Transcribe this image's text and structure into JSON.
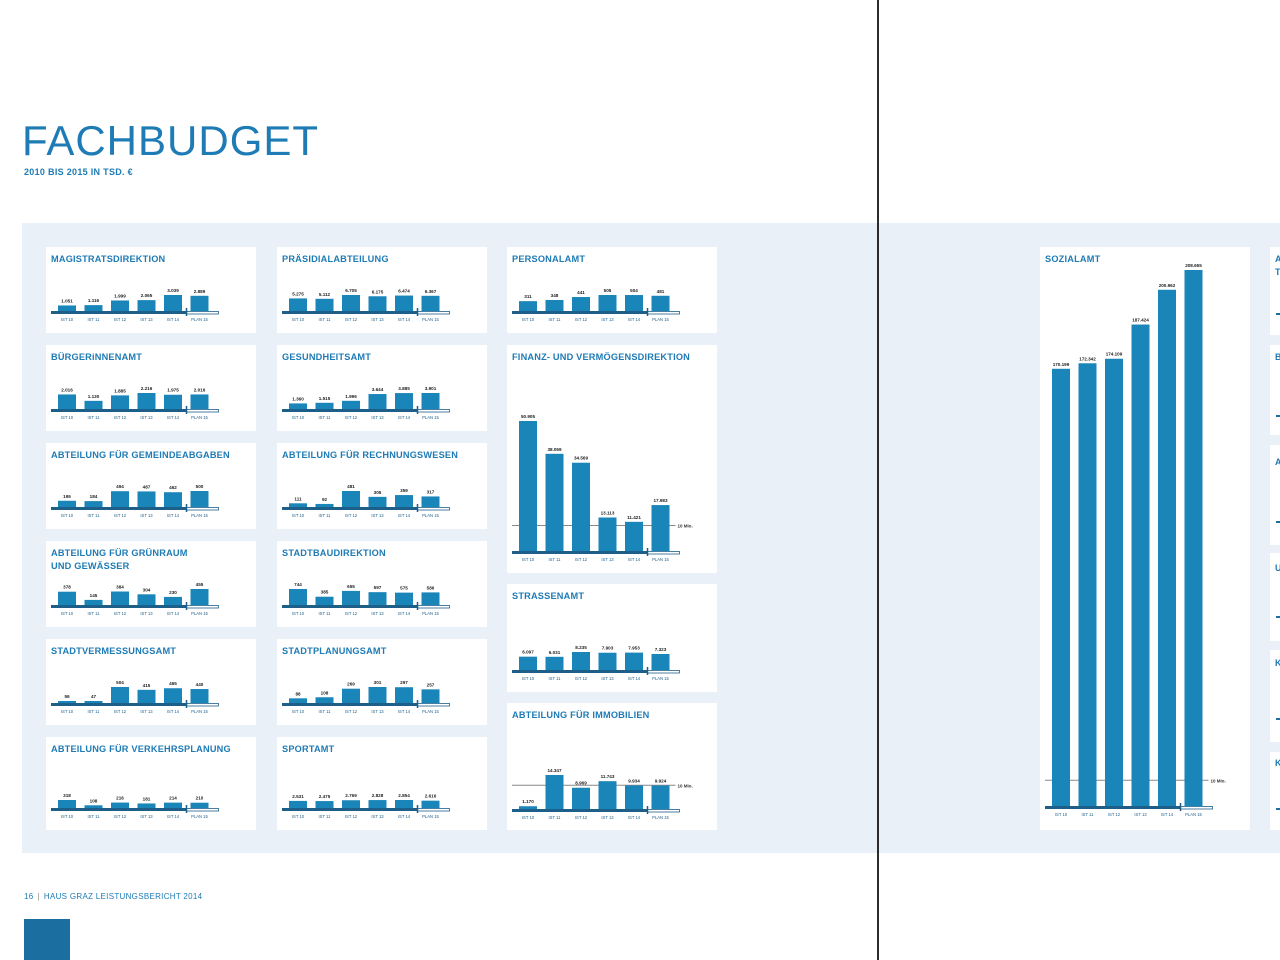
{
  "page": {
    "title": "FACHBUDGET",
    "subtitle": "2010 BIS 2015 IN TSD. €",
    "footer_page": "16",
    "footer_sep": "|",
    "footer_text": "HAUS GRAZ LEISTUNGSBERICHT 2014"
  },
  "colors": {
    "bar": "#1a85b8",
    "axis": "#1e5f8a",
    "title": "#1e7bb5",
    "panel": "#e9f0f7",
    "ref_line": "#888888"
  },
  "categories": [
    "IST 10",
    "IST 11",
    "IST 12",
    "IST 13",
    "IST 14",
    "PLAN 15"
  ],
  "chart_data": [
    {
      "type": "bar",
      "title": "MAGISTRATSDIREKTION",
      "categories": [
        "IST 10",
        "IST 11",
        "IST 12",
        "IST 13",
        "IST 14",
        "PLAN 15"
      ],
      "values": [
        1051,
        1116,
        1999,
        2065,
        3039,
        2889
      ],
      "labels": [
        "1.051",
        "1.116",
        "1.999",
        "2.065",
        "3.039",
        "2.889"
      ]
    },
    {
      "type": "bar",
      "title": "PRÄSIDIALABTEILUNG",
      "categories": [
        "IST 10",
        "IST 11",
        "IST 12",
        "IST 13",
        "IST 14",
        "PLAN 15"
      ],
      "values": [
        5275,
        5112,
        6705,
        6175,
        6474,
        6367
      ],
      "labels": [
        "5.275",
        "5.112",
        "6.705",
        "6.175",
        "6.474",
        "6.367"
      ]
    },
    {
      "type": "bar",
      "title": "PERSONALAMT",
      "categories": [
        "IST 10",
        "IST 11",
        "IST 12",
        "IST 13",
        "IST 14",
        "PLAN 15"
      ],
      "values": [
        311,
        348,
        441,
        505,
        504,
        481
      ],
      "labels": [
        "311",
        "348",
        "441",
        "505",
        "504",
        "481"
      ]
    },
    {
      "type": "bar",
      "title": "BÜRGERiNNENAMT",
      "categories": [
        "IST 10",
        "IST 11",
        "IST 12",
        "IST 13",
        "IST 14",
        "PLAN 15"
      ],
      "values": [
        2016,
        1130,
        1885,
        2216,
        1975,
        2016
      ],
      "labels": [
        "2.016",
        "1.130",
        "1.885",
        "2.216",
        "1.975",
        "2.016"
      ]
    },
    {
      "type": "bar",
      "title": "GESUNDHEITSAMT",
      "categories": [
        "IST 10",
        "IST 11",
        "IST 12",
        "IST 13",
        "IST 14",
        "PLAN 15"
      ],
      "values": [
        1360,
        1515,
        1996,
        3644,
        3885,
        3901
      ],
      "labels": [
        "1.360",
        "1.515",
        "1.996",
        "3.644",
        "3.885",
        "3.901"
      ]
    },
    {
      "type": "bar",
      "title": "FINANZ- UND VERMÖGENSDIREKTION",
      "categories": [
        "IST 10",
        "IST 11",
        "IST 12",
        "IST 13",
        "IST 14",
        "PLAN 15"
      ],
      "values": [
        50905,
        38059,
        34569,
        13113,
        11421,
        17983
      ],
      "labels": [
        "50.905",
        "38.059",
        "34.569",
        "13.113",
        "11.421",
        "17.983"
      ],
      "reference_line": {
        "value": 10000,
        "label": "10 Mio."
      }
    },
    {
      "type": "bar",
      "title": "ABTEILUNG FÜR GEMEINDEABGABEN",
      "categories": [
        "IST 10",
        "IST 11",
        "IST 12",
        "IST 13",
        "IST 14",
        "PLAN 15"
      ],
      "values": [
        195,
        184,
        494,
        487,
        462,
        500
      ],
      "labels": [
        "195",
        "184",
        "494",
        "487",
        "462",
        "500"
      ]
    },
    {
      "type": "bar",
      "title": "ABTEILUNG FÜR RECHNUNGSWESEN",
      "categories": [
        "IST 10",
        "IST 11",
        "IST 12",
        "IST 13",
        "IST 14",
        "PLAN 15"
      ],
      "values": [
        111,
        92,
        481,
        305,
        359,
        317
      ],
      "labels": [
        "111",
        "92",
        "481",
        "305",
        "359",
        "317"
      ]
    },
    {
      "type": "bar",
      "title": "ABTEILUNG FÜR GRÜNRAUM UND GEWÄSSER",
      "categories": [
        "IST 10",
        "IST 11",
        "IST 12",
        "IST 13",
        "IST 14",
        "PLAN 15"
      ],
      "values": [
        378,
        145,
        384,
        304,
        230,
        455
      ],
      "labels": [
        "378",
        "145",
        "384",
        "304",
        "230",
        "455"
      ]
    },
    {
      "type": "bar",
      "title": "STADTBAUDIREKTION",
      "categories": [
        "IST 10",
        "IST 11",
        "IST 12",
        "IST 13",
        "IST 14",
        "PLAN 15"
      ],
      "values": [
        744,
        385,
        655,
        597,
        575,
        586
      ],
      "labels": [
        "744",
        "385",
        "655",
        "597",
        "575",
        "586"
      ]
    },
    {
      "type": "bar",
      "title": "STRASSENAMT",
      "categories": [
        "IST 10",
        "IST 11",
        "IST 12",
        "IST 13",
        "IST 14",
        "PLAN 15"
      ],
      "values": [
        6097,
        6031,
        8235,
        7903,
        7953,
        7323
      ],
      "labels": [
        "6.097",
        "6.031",
        "8.235",
        "7.903",
        "7.953",
        "7.323"
      ]
    },
    {
      "type": "bar",
      "title": "STADTVERMESSUNGSAMT",
      "categories": [
        "IST 10",
        "IST 11",
        "IST 12",
        "IST 13",
        "IST 14",
        "PLAN 15"
      ],
      "values": [
        59,
        47,
        504,
        415,
        465,
        440
      ],
      "labels": [
        "59",
        "47",
        "504",
        "415",
        "465",
        "440"
      ]
    },
    {
      "type": "bar",
      "title": "STADTPLANUNGSAMT",
      "categories": [
        "IST 10",
        "IST 11",
        "IST 12",
        "IST 13",
        "IST 14",
        "PLAN 15"
      ],
      "values": [
        88,
        108,
        269,
        301,
        297,
        257
      ],
      "labels": [
        "88",
        "108",
        "269",
        "301",
        "297",
        "257"
      ]
    },
    {
      "type": "bar",
      "title": "ABTEILUNG FÜR IMMOBILIEN",
      "categories": [
        "IST 10",
        "IST 11",
        "IST 12",
        "IST 13",
        "IST 14",
        "PLAN 15"
      ],
      "values": [
        1170,
        14347,
        8969,
        11743,
        9934,
        9924
      ],
      "labels": [
        "1.170",
        "14.347",
        "8.969",
        "11.743",
        "9.934",
        "9.924"
      ],
      "reference_line": {
        "value": 10000,
        "label": "10 Mio."
      }
    },
    {
      "type": "bar",
      "title": "ABTEILUNG FÜR VERKEHRSPLANUNG",
      "categories": [
        "IST 10",
        "IST 11",
        "IST 12",
        "IST 13",
        "IST 14",
        "PLAN 15"
      ],
      "values": [
        318,
        108,
        216,
        181,
        214,
        210
      ],
      "labels": [
        "318",
        "108",
        "216",
        "181",
        "214",
        "210"
      ]
    },
    {
      "type": "bar",
      "title": "SPORTAMT",
      "categories": [
        "IST 10",
        "IST 11",
        "IST 12",
        "IST 13",
        "IST 14",
        "PLAN 15"
      ],
      "values": [
        2531,
        2475,
        2769,
        2828,
        2854,
        2616
      ],
      "labels": [
        "2.531",
        "2.475",
        "2.769",
        "2.828",
        "2.854",
        "2.616"
      ]
    },
    {
      "type": "bar",
      "title": "SOZIALAMT",
      "categories": [
        "IST 10",
        "IST 11",
        "IST 12",
        "IST 13",
        "IST 14",
        "PLAN 15"
      ],
      "values": [
        170199,
        172342,
        174109,
        187424,
        200962,
        208655
      ],
      "labels": [
        "170.199",
        "172.342",
        "174.109",
        "187.424",
        "200.962",
        "208.655"
      ],
      "reference_line": {
        "value": 10000,
        "label": "10 Mio."
      }
    }
  ],
  "edge_fragments": [
    "A",
    "T",
    "B",
    "A",
    "U",
    "K",
    "K"
  ]
}
